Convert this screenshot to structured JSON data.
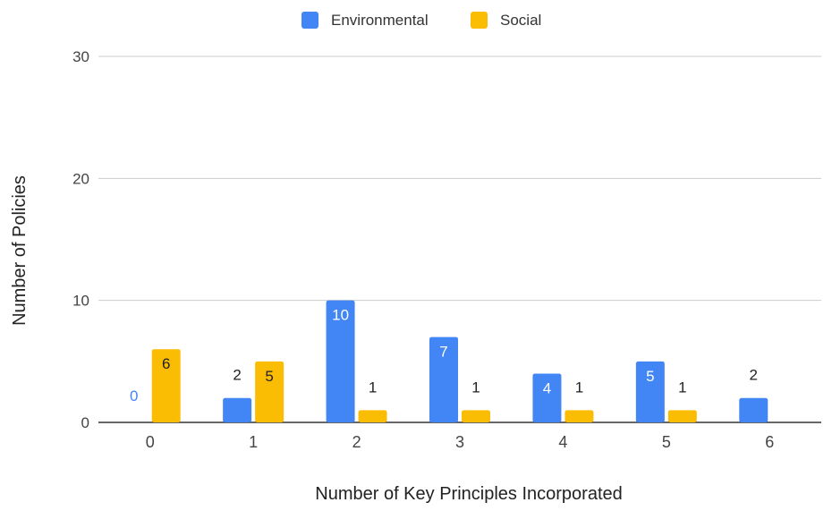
{
  "chart_data": {
    "type": "bar",
    "title": "",
    "xlabel": "Number of Key Principles Incorporated",
    "ylabel": "Number of Policies",
    "categories": [
      "0",
      "1",
      "2",
      "3",
      "4",
      "5",
      "6"
    ],
    "ylim": [
      0,
      30
    ],
    "yticks": [
      "0",
      "10",
      "20",
      "30"
    ],
    "grid": true,
    "legend_position": "top",
    "series": [
      {
        "name": "Environmental",
        "color": "#4285f4",
        "values": [
          0,
          2,
          10,
          7,
          4,
          5,
          2
        ]
      },
      {
        "name": "Social",
        "color": "#fbbc04",
        "values": [
          6,
          5,
          1,
          1,
          1,
          1,
          0
        ]
      }
    ]
  }
}
